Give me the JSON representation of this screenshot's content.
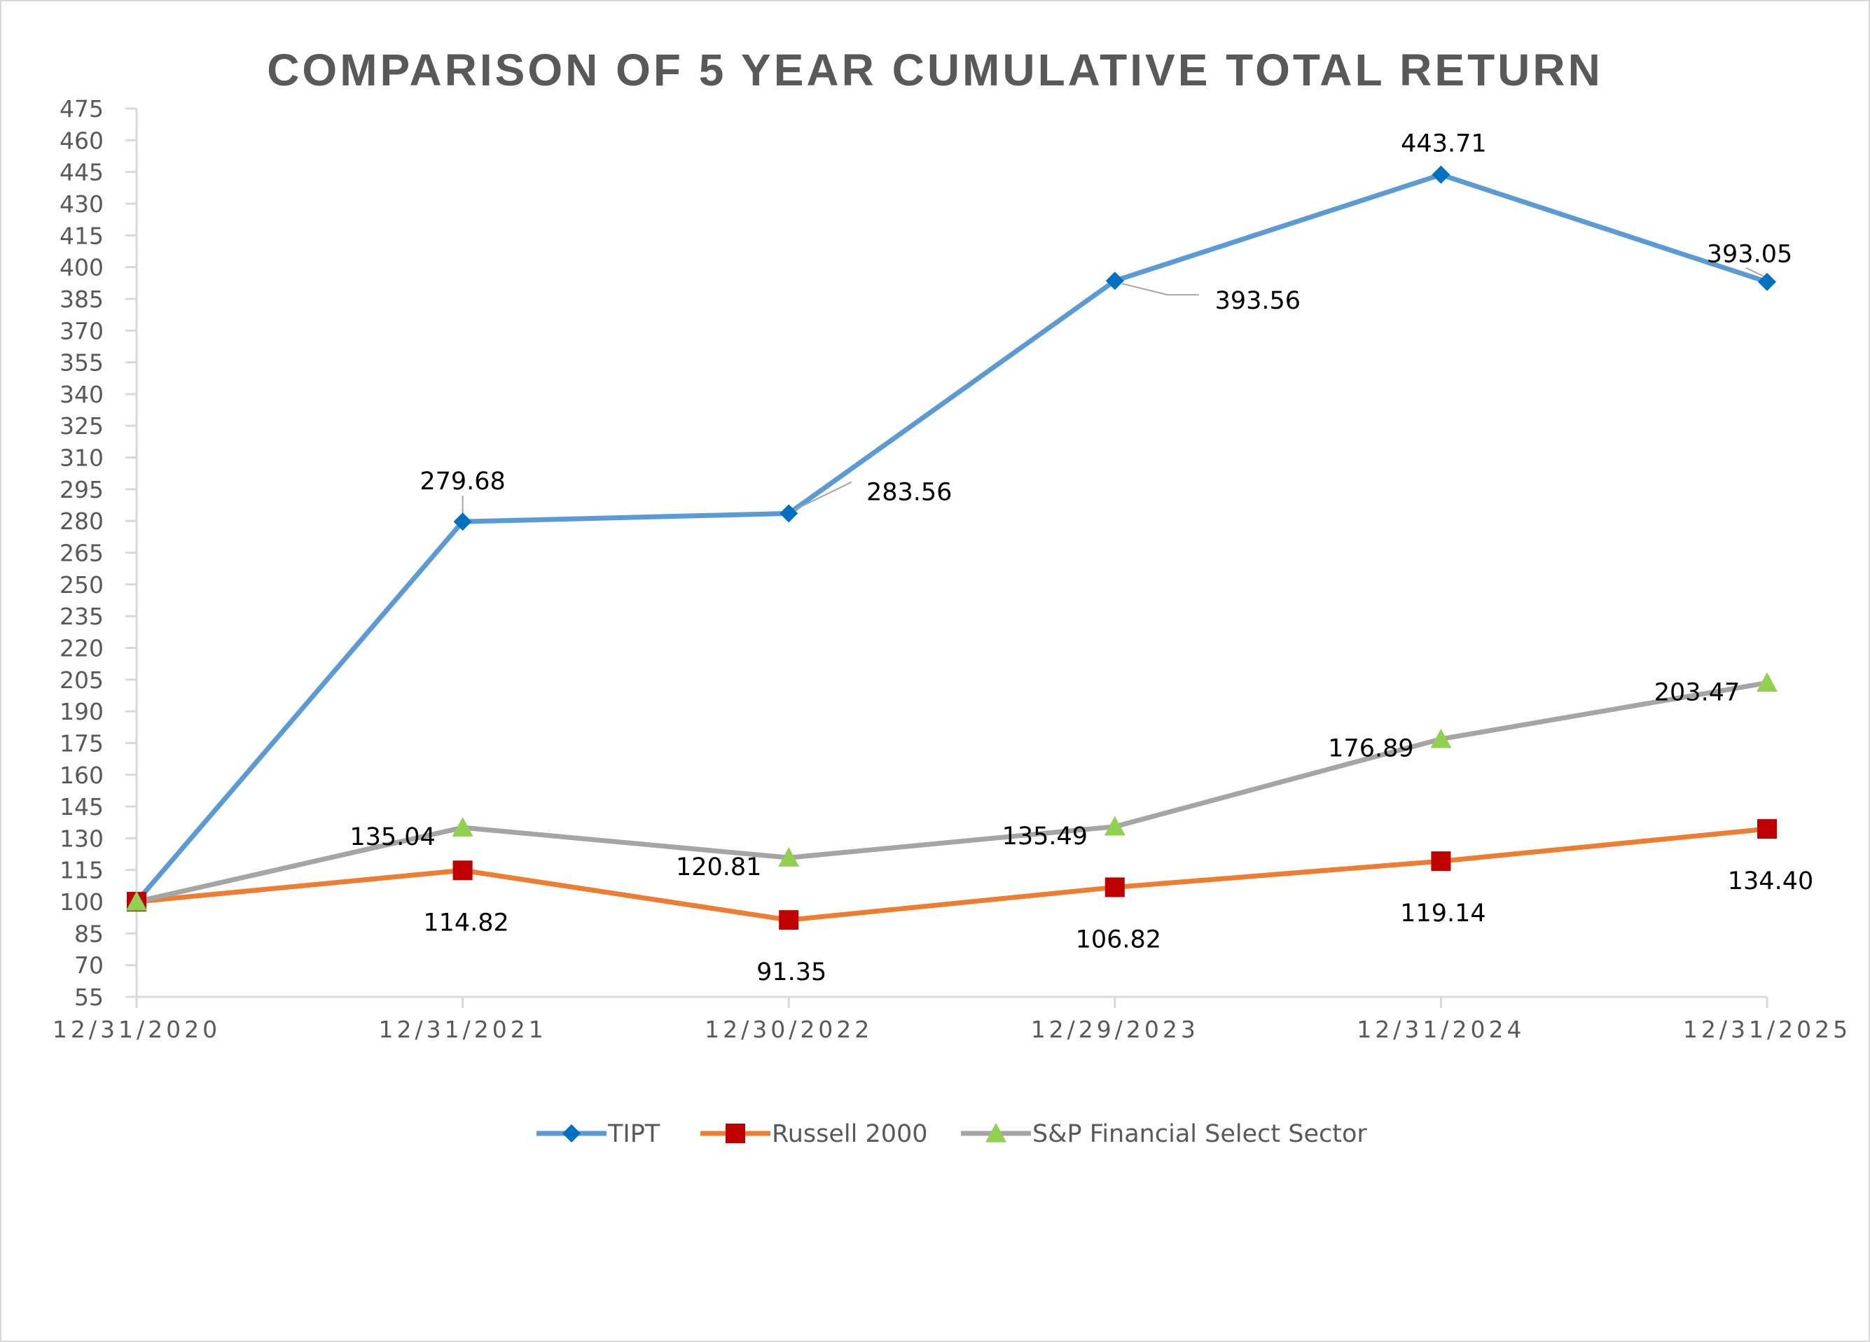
{
  "chart_data": {
    "type": "line",
    "title": "COMPARISON OF 5 YEAR CUMULATIVE TOTAL RETURN",
    "xlabel": "",
    "ylabel": "",
    "categories": [
      "12/31/2020",
      "12/31/2021",
      "12/30/2022",
      "12/29/2023",
      "12/31/2024",
      "12/31/2025"
    ],
    "ylim": [
      55,
      475
    ],
    "ytick_step": 15,
    "yticks": [
      "475",
      "460",
      "445",
      "430",
      "415",
      "400",
      "385",
      "370",
      "355",
      "340",
      "325",
      "310",
      "295",
      "280",
      "265",
      "250",
      "235",
      "220",
      "205",
      "190",
      "175",
      "160",
      "145",
      "130",
      "115",
      "100",
      "85",
      "70",
      "55"
    ],
    "grid": false,
    "legend_position": "bottom",
    "series": [
      {
        "name": "TIPT",
        "marker": "diamond",
        "color": "#5b9bd5",
        "marker_color": "#0070c0",
        "values": [
          100,
          279.68,
          283.56,
          393.56,
          443.71,
          393.05
        ],
        "labels": [
          "",
          "279.68",
          "283.56",
          "393.56",
          "443.71",
          "393.05"
        ]
      },
      {
        "name": "Russell 2000",
        "marker": "square",
        "color": "#ed7d31",
        "marker_color": "#c00000",
        "values": [
          100,
          114.82,
          91.35,
          106.82,
          119.14,
          134.4
        ],
        "labels": [
          "",
          "114.82",
          "91.35",
          "106.82",
          "119.14",
          "134.40"
        ]
      },
      {
        "name": "S&P Financial Select Sector",
        "marker": "triangle",
        "color": "#a5a5a5",
        "marker_color": "#92d050",
        "values": [
          100,
          135.04,
          120.81,
          135.49,
          176.89,
          203.47
        ],
        "labels": [
          "",
          "135.04",
          "120.81",
          "135.49",
          "176.89",
          "203.47"
        ]
      }
    ]
  }
}
